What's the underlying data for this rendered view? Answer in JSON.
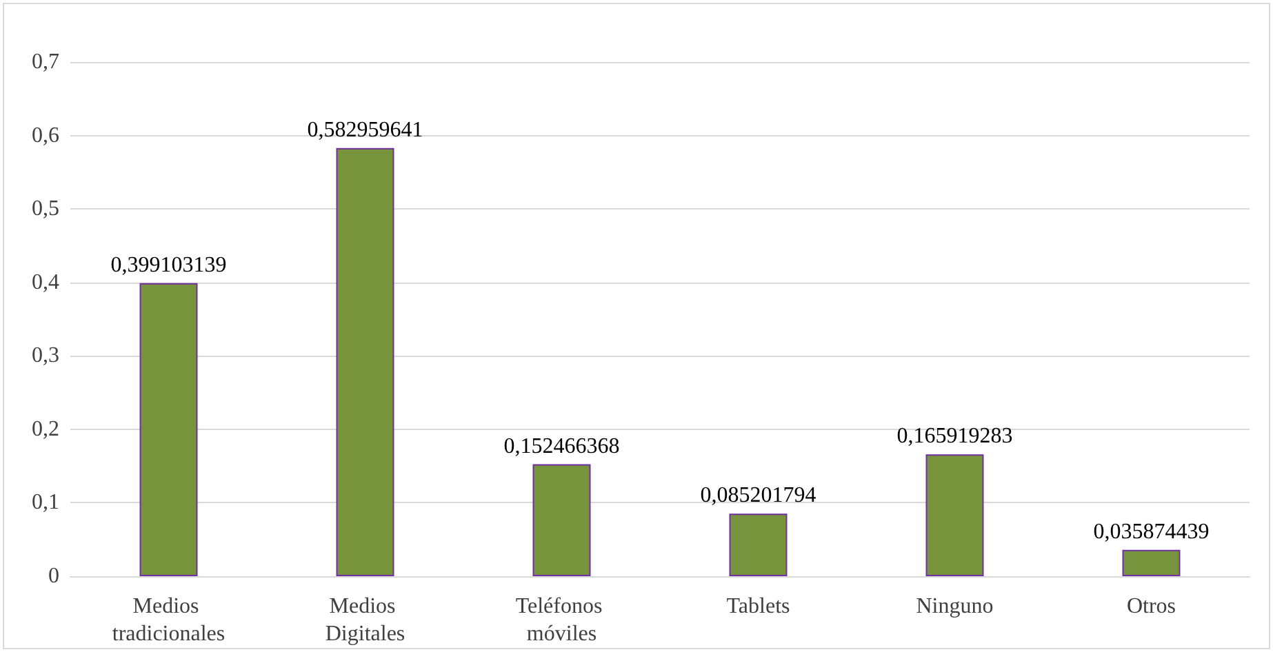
{
  "chart_data": {
    "type": "bar",
    "categories": [
      "Medios tradicionales",
      "Medios Digitales",
      "Teléfonos móviles",
      "Tablets",
      "Ninguno",
      "Otros"
    ],
    "values": [
      0.399103139,
      0.582959641,
      0.152466368,
      0.085201794,
      0.165919283,
      0.035874439
    ],
    "value_labels": [
      "0,399103139",
      "0,582959641",
      "0,152466368",
      "0,085201794",
      "0,165919283",
      "0,035874439"
    ],
    "color": "#77933c",
    "ylim": [
      0,
      0.7
    ],
    "yticks": [
      0,
      {
        "value": 0.1,
        "label": "0,1"
      },
      {
        "value": 0.2,
        "label": "0,2"
      },
      {
        "value": 0.3,
        "label": "0,3"
      },
      {
        "value": 0.4,
        "label": "0,4"
      },
      {
        "value": 0.5,
        "label": "0,5"
      },
      {
        "value": 0.6,
        "label": "0,6"
      },
      {
        "value": 0.7,
        "label": "0,7"
      }
    ],
    "grid": "y"
  }
}
